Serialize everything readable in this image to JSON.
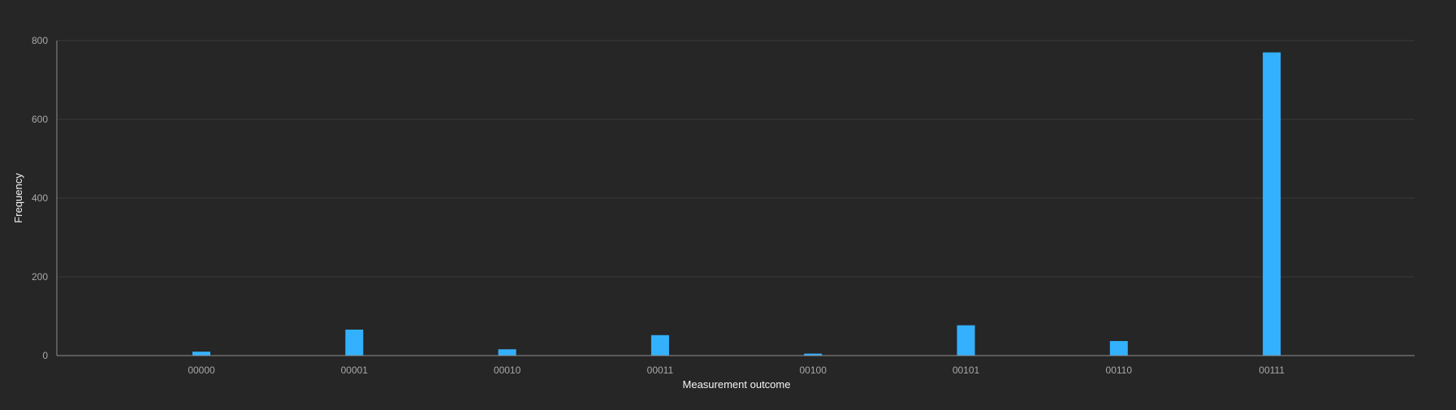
{
  "chart_data": {
    "type": "bar",
    "title": "",
    "xlabel": "Measurement outcome",
    "ylabel": "Frequency",
    "categories": [
      "00000",
      "00001",
      "00010",
      "00011",
      "00100",
      "00101",
      "00110",
      "00111"
    ],
    "values": [
      10,
      66,
      16,
      52,
      5,
      77,
      37,
      770
    ],
    "ylim": [
      0,
      800
    ],
    "yticks": [
      0,
      200,
      400,
      600,
      800
    ],
    "grid": true,
    "legend": "none",
    "colors": {
      "background": "#262626",
      "bar": "#33b1ff",
      "grid": "#393939",
      "axis": "#8d8d8d",
      "tick_text": "#a8a8a8",
      "title_text": "#f4f4f4"
    }
  }
}
